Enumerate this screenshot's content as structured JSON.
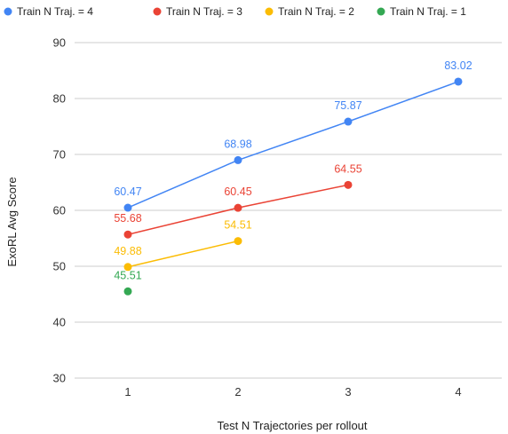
{
  "chart_data": {
    "type": "line",
    "title": "",
    "xlabel": "Test N Trajectories per rollout",
    "ylabel": "ExoRL Avg Score",
    "x": [
      1,
      2,
      3,
      4
    ],
    "x_ticks": [
      "1",
      "2",
      "3",
      "4"
    ],
    "y_ticks": [
      "30",
      "40",
      "50",
      "60",
      "70",
      "80",
      "90"
    ],
    "ylim": [
      30,
      90
    ],
    "grid": true,
    "legend_position": "top",
    "series": [
      {
        "name": "Train N Traj. = 4",
        "color": "#4285F4",
        "x": [
          1,
          2,
          3,
          4
        ],
        "values": [
          60.47,
          68.98,
          75.87,
          83.02
        ],
        "labels": [
          "60.47",
          "68.98",
          "75.87",
          "83.02"
        ]
      },
      {
        "name": "Train N Traj. = 3",
        "color": "#EA4335",
        "x": [
          1,
          2,
          3
        ],
        "values": [
          55.68,
          60.45,
          64.55
        ],
        "labels": [
          "55.68",
          "60.45",
          "64.55"
        ]
      },
      {
        "name": "Train N Traj. = 2",
        "color": "#FBBC04",
        "x": [
          1,
          2
        ],
        "values": [
          49.88,
          54.51
        ],
        "labels": [
          "49.88",
          "54.51"
        ]
      },
      {
        "name": "Train N Traj. = 1",
        "color": "#34A853",
        "x": [
          1
        ],
        "values": [
          45.51
        ],
        "labels": [
          "45.51"
        ]
      }
    ]
  }
}
